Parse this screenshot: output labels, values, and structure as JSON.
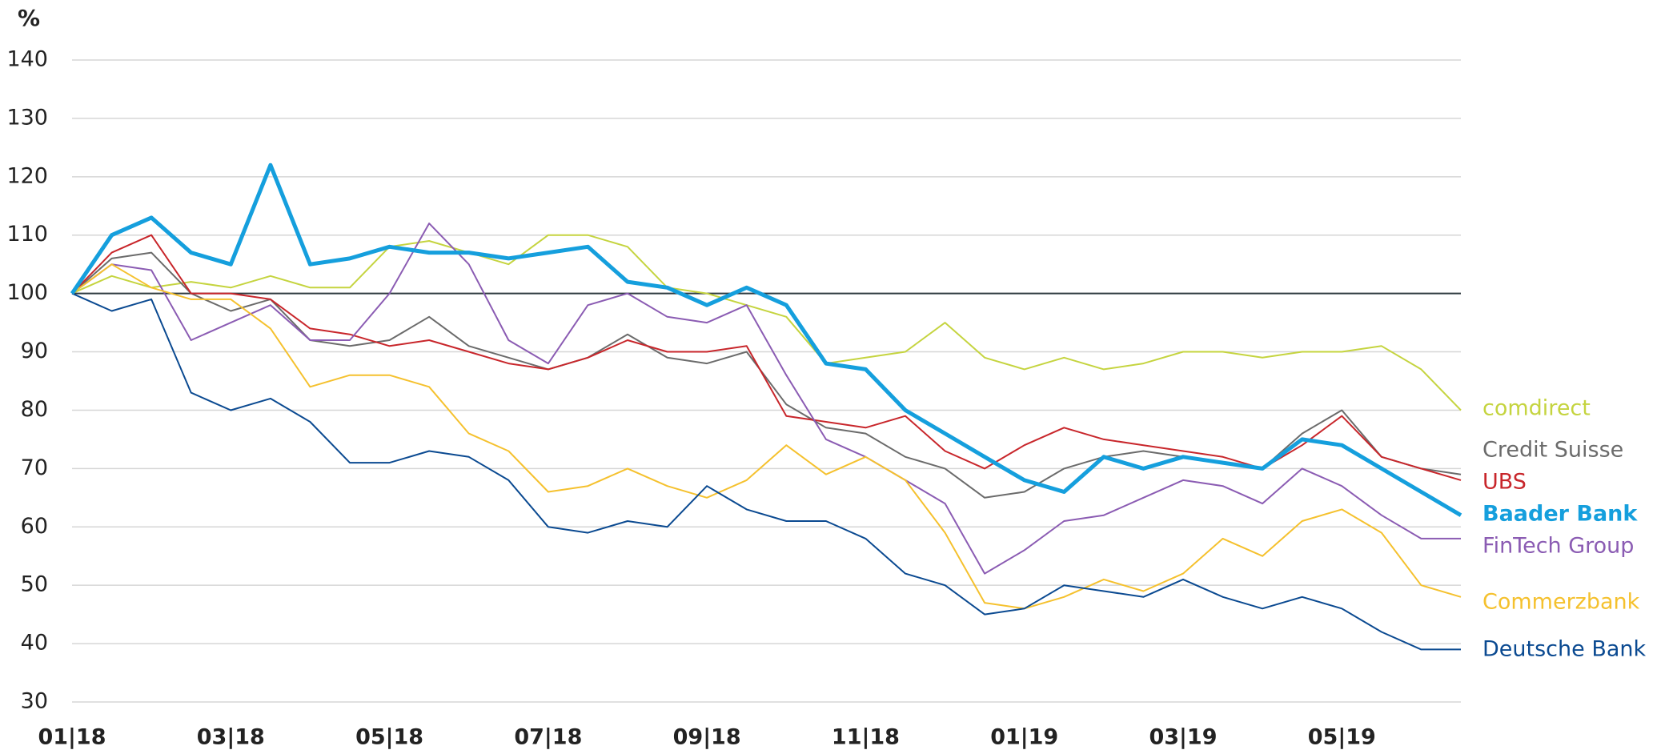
{
  "chart_data": {
    "type": "line",
    "y_axis_label": "%",
    "categories": [
      "01|18",
      null,
      null,
      null,
      "03|18",
      null,
      null,
      null,
      "05|18",
      null,
      null,
      null,
      "07|18",
      null,
      null,
      null,
      "09|18",
      null,
      null,
      null,
      "11|18",
      null,
      null,
      null,
      "01|19",
      null,
      null,
      null,
      "03|19",
      null,
      null,
      null,
      "05|19",
      null,
      null,
      null
    ],
    "ylim": [
      30,
      140
    ],
    "yticks": [
      30,
      40,
      50,
      60,
      70,
      80,
      90,
      100,
      110,
      120,
      130,
      140
    ],
    "grid": true,
    "reference_line": 100,
    "series": [
      {
        "name": "comdirect",
        "color": "#c5d43f",
        "values": [
          100,
          103,
          101,
          102,
          101,
          103,
          101,
          101,
          108,
          109,
          107,
          105,
          110,
          110,
          108,
          101,
          100,
          98,
          96,
          88,
          89,
          90,
          95,
          89,
          87,
          89,
          87,
          88,
          90,
          90,
          89,
          90,
          90,
          91,
          87,
          80
        ]
      },
      {
        "name": "Credit Suisse",
        "color": "#6b6b6b",
        "values": [
          100,
          106,
          107,
          100,
          97,
          99,
          92,
          91,
          92,
          96,
          91,
          89,
          87,
          89,
          93,
          89,
          88,
          90,
          81,
          77,
          76,
          72,
          70,
          65,
          66,
          70,
          72,
          73,
          72,
          71,
          70,
          76,
          80,
          72,
          70,
          69
        ]
      },
      {
        "name": "UBS",
        "color": "#c8262b",
        "values": [
          100,
          107,
          110,
          100,
          100,
          99,
          94,
          93,
          91,
          92,
          90,
          88,
          87,
          89,
          92,
          90,
          90,
          91,
          79,
          78,
          77,
          79,
          73,
          70,
          74,
          77,
          75,
          74,
          73,
          72,
          70,
          74,
          79,
          72,
          70,
          68
        ]
      },
      {
        "name": "Baader Bank",
        "color": "#159fdd",
        "bold": true,
        "values": [
          100,
          110,
          113,
          107,
          105,
          122,
          105,
          106,
          108,
          107,
          107,
          106,
          107,
          108,
          102,
          101,
          98,
          101,
          98,
          88,
          87,
          80,
          76,
          72,
          68,
          66,
          72,
          70,
          72,
          71,
          70,
          75,
          74,
          70,
          66,
          62
        ]
      },
      {
        "name": "FinTech Group",
        "color": "#8b5cb3",
        "values": [
          100,
          105,
          104,
          92,
          95,
          98,
          92,
          92,
          100,
          112,
          105,
          92,
          88,
          98,
          100,
          96,
          95,
          98,
          86,
          75,
          72,
          68,
          64,
          52,
          56,
          61,
          62,
          65,
          68,
          67,
          64,
          70,
          67,
          62,
          58,
          58
        ]
      },
      {
        "name": "Commerzbank",
        "color": "#f5c12e",
        "values": [
          100,
          105,
          101,
          99,
          99,
          94,
          84,
          86,
          86,
          84,
          76,
          73,
          66,
          67,
          70,
          67,
          65,
          68,
          74,
          69,
          72,
          68,
          59,
          47,
          46,
          48,
          51,
          49,
          52,
          58,
          55,
          61,
          63,
          59,
          50,
          48
        ]
      },
      {
        "name": "Deutsche Bank",
        "color": "#0b4a91",
        "values": [
          100,
          97,
          99,
          83,
          80,
          82,
          78,
          71,
          71,
          73,
          72,
          68,
          60,
          59,
          61,
          60,
          67,
          63,
          61,
          61,
          58,
          52,
          50,
          45,
          46,
          50,
          49,
          48,
          51,
          48,
          46,
          48,
          46,
          42,
          39,
          39
        ]
      }
    ]
  }
}
